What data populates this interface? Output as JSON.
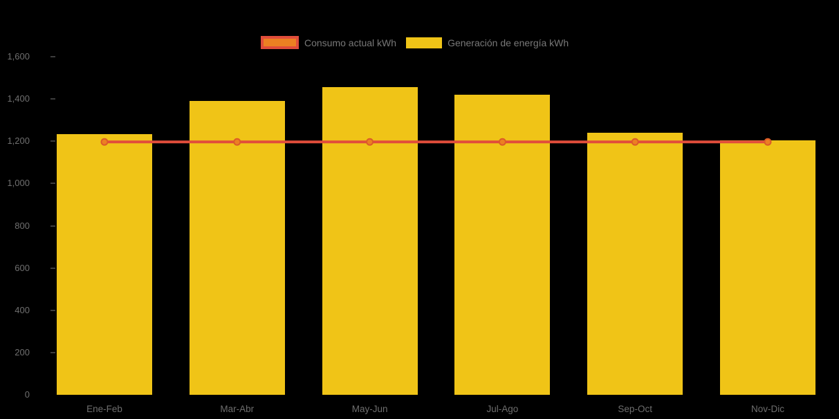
{
  "chart_data": {
    "type": "bar",
    "title": "",
    "xlabel": "",
    "ylabel": "",
    "categories": [
      "Ene-Feb",
      "Mar-Abr",
      "May-Jun",
      "Jul-Ago",
      "Sep-Oct",
      "Nov-Dic"
    ],
    "series": [
      {
        "name": "Consumo actual kWh",
        "type": "line",
        "color": "#E14D3B",
        "marker_fill": "#EC8022",
        "marker_stroke": "#DC5B28",
        "values": [
          1200,
          1200,
          1200,
          1200,
          1200,
          1200
        ]
      },
      {
        "name": "Generación de energía kWh",
        "type": "bar",
        "color": "#F0C417",
        "values": [
          1235,
          1390,
          1455,
          1420,
          1240,
          1205
        ]
      }
    ],
    "ylim": [
      0,
      1600
    ],
    "ytick_step": 200,
    "ytick_labels": [
      "0",
      "200",
      "400",
      "600",
      "800",
      "1,000",
      "1,200",
      "1,400",
      "1,600"
    ],
    "grid": false,
    "legend_position": "top",
    "background": "#000000",
    "axis_text_color": "#6F6F6F"
  }
}
